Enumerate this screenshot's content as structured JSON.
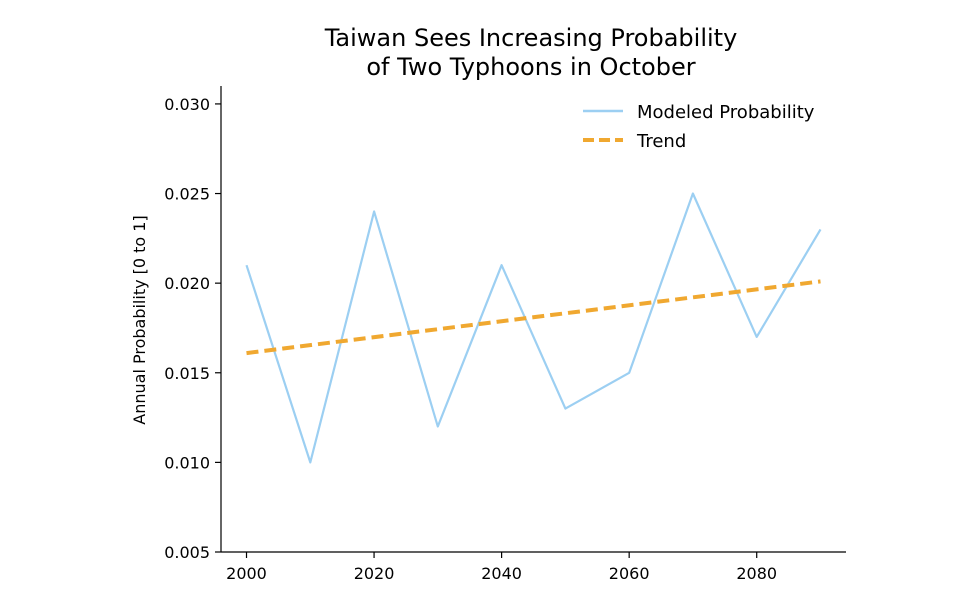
{
  "chart_data": {
    "type": "line",
    "title": [
      "Taiwan Sees Increasing Probability",
      "of Two Typhoons in October"
    ],
    "xlabel": "",
    "ylabel": "Annual Probability [0 to 1]",
    "xlim": [
      1996,
      2094
    ],
    "ylim": [
      0.005,
      0.031
    ],
    "x_ticks": [
      2000,
      2020,
      2040,
      2060,
      2080
    ],
    "x_tick_labels": [
      "2000",
      "2020",
      "2040",
      "2060",
      "2080"
    ],
    "y_ticks": [
      0.005,
      0.01,
      0.015,
      0.02,
      0.025,
      0.03
    ],
    "y_tick_labels": [
      "0.005",
      "0.010",
      "0.015",
      "0.020",
      "0.025",
      "0.030"
    ],
    "grid": false,
    "legend_position": "top-right",
    "series": [
      {
        "name": "Modeled Probability",
        "style": "solid",
        "color": "#9ccff2",
        "x": [
          2000,
          2010,
          2020,
          2030,
          2040,
          2050,
          2060,
          2070,
          2080,
          2090
        ],
        "y": [
          0.021,
          0.01,
          0.024,
          0.012,
          0.021,
          0.013,
          0.015,
          0.025,
          0.017,
          0.023
        ]
      },
      {
        "name": "Trend",
        "style": "dashed",
        "color": "#f0a830",
        "x": [
          2000,
          2090
        ],
        "y": [
          0.0161,
          0.0201
        ]
      }
    ]
  }
}
